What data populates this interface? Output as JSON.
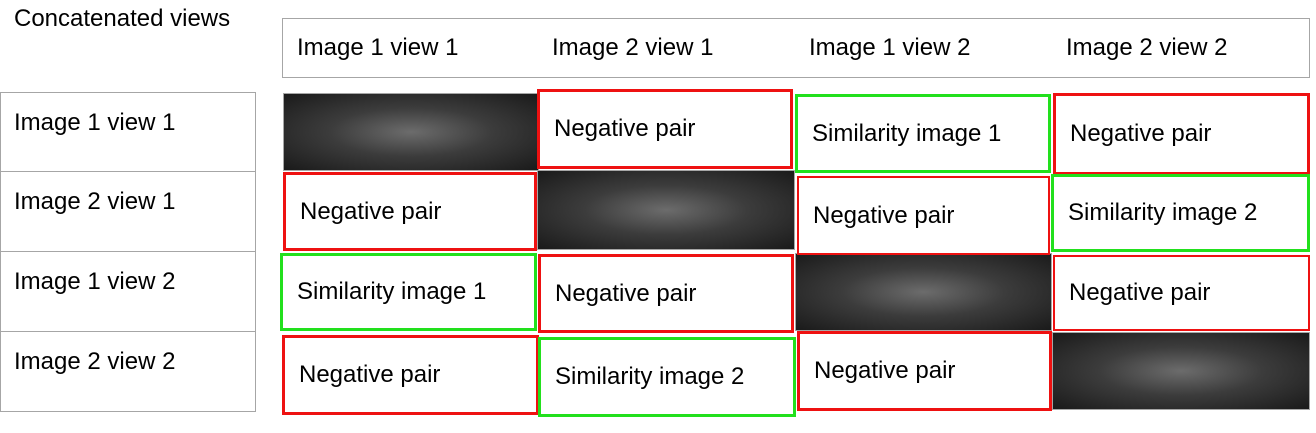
{
  "corner_label": "Concatenated views",
  "columns": [
    "Image 1 view 1",
    "Image 2 view 1",
    "Image 1 view 2",
    "Image 2 view 2"
  ],
  "rows": [
    "Image 1 view 1",
    "Image 2 view 1",
    "Image 1 view 2",
    "Image 2 view 2"
  ],
  "cells": {
    "r1c2": "Negative pair",
    "r1c3": "Similarity image 1",
    "r1c4": "Negative pair",
    "r2c1": "Negative pair",
    "r2c3": "Negative pair",
    "r2c4": "Similarity image 2",
    "r3c1": "Similarity image 1",
    "r3c2": "Negative pair",
    "r3c4": "Negative pair",
    "r4c1": "Negative pair",
    "r4c2": "Similarity image 2",
    "r4c3": "Negative pair"
  },
  "colors": {
    "negative_border": "#ee1111",
    "similarity_border": "#22e01d",
    "diagonal_fill": "#3c3c3c"
  }
}
